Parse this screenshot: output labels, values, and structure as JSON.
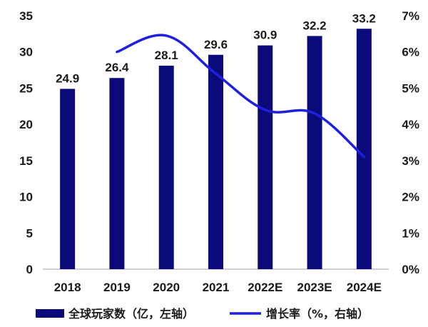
{
  "chart_data": {
    "type": "bar",
    "categories": [
      "2018",
      "2019",
      "2020",
      "2021",
      "2022E",
      "2023E",
      "2024E"
    ],
    "series": [
      {
        "name": "全球玩家数（亿，左轴）",
        "type": "bar",
        "axis": "left",
        "values": [
          24.9,
          26.4,
          28.1,
          29.6,
          30.9,
          32.2,
          33.2
        ],
        "color": "#0a0a7a"
      },
      {
        "name": "增长率（%，右轴）",
        "type": "line",
        "axis": "right",
        "values": [
          null,
          6.0,
          6.45,
          5.4,
          4.4,
          4.3,
          3.1
        ],
        "color": "#1f1fe0"
      }
    ],
    "left_axis": {
      "min": 0,
      "max": 35,
      "step": 5,
      "ticks": [
        "0",
        "5",
        "10",
        "15",
        "20",
        "25",
        "30",
        "35"
      ]
    },
    "right_axis": {
      "min": 0,
      "max": 7,
      "step": 1,
      "ticks": [
        "0%",
        "1%",
        "2%",
        "3%",
        "4%",
        "5%",
        "6%",
        "7%"
      ]
    },
    "data_labels": [
      "24.9",
      "26.4",
      "28.1",
      "29.6",
      "30.9",
      "32.2",
      "33.2"
    ],
    "grid": false,
    "legend_position": "bottom"
  }
}
